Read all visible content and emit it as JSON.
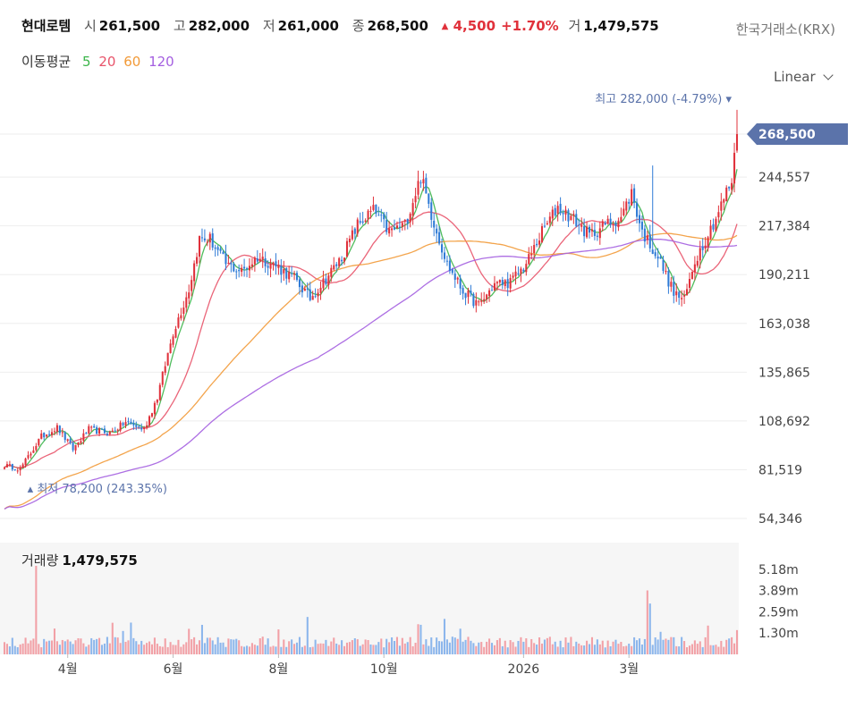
{
  "header": {
    "name": "현대로템",
    "open_label": "시",
    "open": "261,500",
    "high_label": "고",
    "high": "282,000",
    "low_label": "저",
    "low": "261,000",
    "close_label": "종",
    "close": "268,500",
    "change": "4,500",
    "change_pct": "+1.70%",
    "volume_label": "거",
    "volume": "1,479,575",
    "exchange": "한국거래소(KRX)"
  },
  "moving_average": {
    "label": "이동평균",
    "periods": [
      {
        "label": "5",
        "color": "#3cb54a"
      },
      {
        "label": "20",
        "color": "#e8546a"
      },
      {
        "label": "60",
        "color": "#f29a38"
      },
      {
        "label": "120",
        "color": "#a45fe0"
      }
    ]
  },
  "scale_toggle": "Linear",
  "annotations": {
    "high": "최고 282,000 (-4.79%)",
    "low": "최저 78,200 (243.35%)",
    "last_price": "268,500"
  },
  "colors": {
    "up": "#e0313b",
    "down": "#2f7bd6",
    "last_price_bg": "#5b73aa",
    "annotation": "#5b73aa",
    "volume_up": "#f2a0a6",
    "volume_down": "#8cb6ec"
  },
  "chart_data": {
    "type": "candlestick",
    "price_axis": {
      "ticks": [
        268500,
        244557,
        217384,
        190211,
        163038,
        135865,
        108692,
        81519,
        54346
      ],
      "labels": [
        "268,500",
        "244,557",
        "217,384",
        "190,211",
        "163,038",
        "135,865",
        "108,692",
        "81,519",
        "54,346"
      ]
    },
    "x_axis": {
      "labels": [
        "4월",
        "6월",
        "8월",
        "10월",
        "2026",
        "3월"
      ]
    },
    "volume_axis": {
      "labels": [
        "5.18m",
        "3.89m",
        "2.59m",
        "1.30m"
      ],
      "values": [
        5.18,
        3.89,
        2.59,
        1.3
      ]
    },
    "volume_title": "거래량",
    "volume_value": "1,479,575",
    "close_anchors": [
      {
        "i": 0,
        "v": 84000
      },
      {
        "i": 6,
        "v": 82000
      },
      {
        "i": 14,
        "v": 100000
      },
      {
        "i": 20,
        "v": 105000
      },
      {
        "i": 26,
        "v": 93000
      },
      {
        "i": 32,
        "v": 104000
      },
      {
        "i": 40,
        "v": 102000
      },
      {
        "i": 46,
        "v": 108000
      },
      {
        "i": 53,
        "v": 104000
      },
      {
        "i": 58,
        "v": 122000
      },
      {
        "i": 64,
        "v": 158000
      },
      {
        "i": 70,
        "v": 182000
      },
      {
        "i": 74,
        "v": 210000
      },
      {
        "i": 78,
        "v": 210000
      },
      {
        "i": 84,
        "v": 196000
      },
      {
        "i": 90,
        "v": 192000
      },
      {
        "i": 96,
        "v": 200000
      },
      {
        "i": 102,
        "v": 196000
      },
      {
        "i": 110,
        "v": 188000
      },
      {
        "i": 116,
        "v": 177000
      },
      {
        "i": 122,
        "v": 188000
      },
      {
        "i": 128,
        "v": 200000
      },
      {
        "i": 134,
        "v": 218000
      },
      {
        "i": 140,
        "v": 226000
      },
      {
        "i": 146,
        "v": 214000
      },
      {
        "i": 152,
        "v": 218000
      },
      {
        "i": 158,
        "v": 245000
      },
      {
        "i": 162,
        "v": 224000
      },
      {
        "i": 168,
        "v": 196000
      },
      {
        "i": 174,
        "v": 181000
      },
      {
        "i": 180,
        "v": 173000
      },
      {
        "i": 186,
        "v": 185000
      },
      {
        "i": 192,
        "v": 186000
      },
      {
        "i": 198,
        "v": 196000
      },
      {
        "i": 204,
        "v": 214000
      },
      {
        "i": 210,
        "v": 228000
      },
      {
        "i": 216,
        "v": 221000
      },
      {
        "i": 222,
        "v": 212000
      },
      {
        "i": 228,
        "v": 218000
      },
      {
        "i": 234,
        "v": 222000
      },
      {
        "i": 238,
        "v": 236000
      },
      {
        "i": 242,
        "v": 214000
      },
      {
        "i": 248,
        "v": 200000
      },
      {
        "i": 254,
        "v": 180000
      },
      {
        "i": 258,
        "v": 176000
      },
      {
        "i": 262,
        "v": 198000
      },
      {
        "i": 266,
        "v": 210000
      },
      {
        "i": 270,
        "v": 222000
      },
      {
        "i": 274,
        "v": 236000
      },
      {
        "i": 276,
        "v": 242000
      },
      {
        "i": 278,
        "v": 268500
      }
    ],
    "high": 282000,
    "low": 78200,
    "last_close": 268500,
    "last_volume": 1479575,
    "volume_max": 5180000
  }
}
